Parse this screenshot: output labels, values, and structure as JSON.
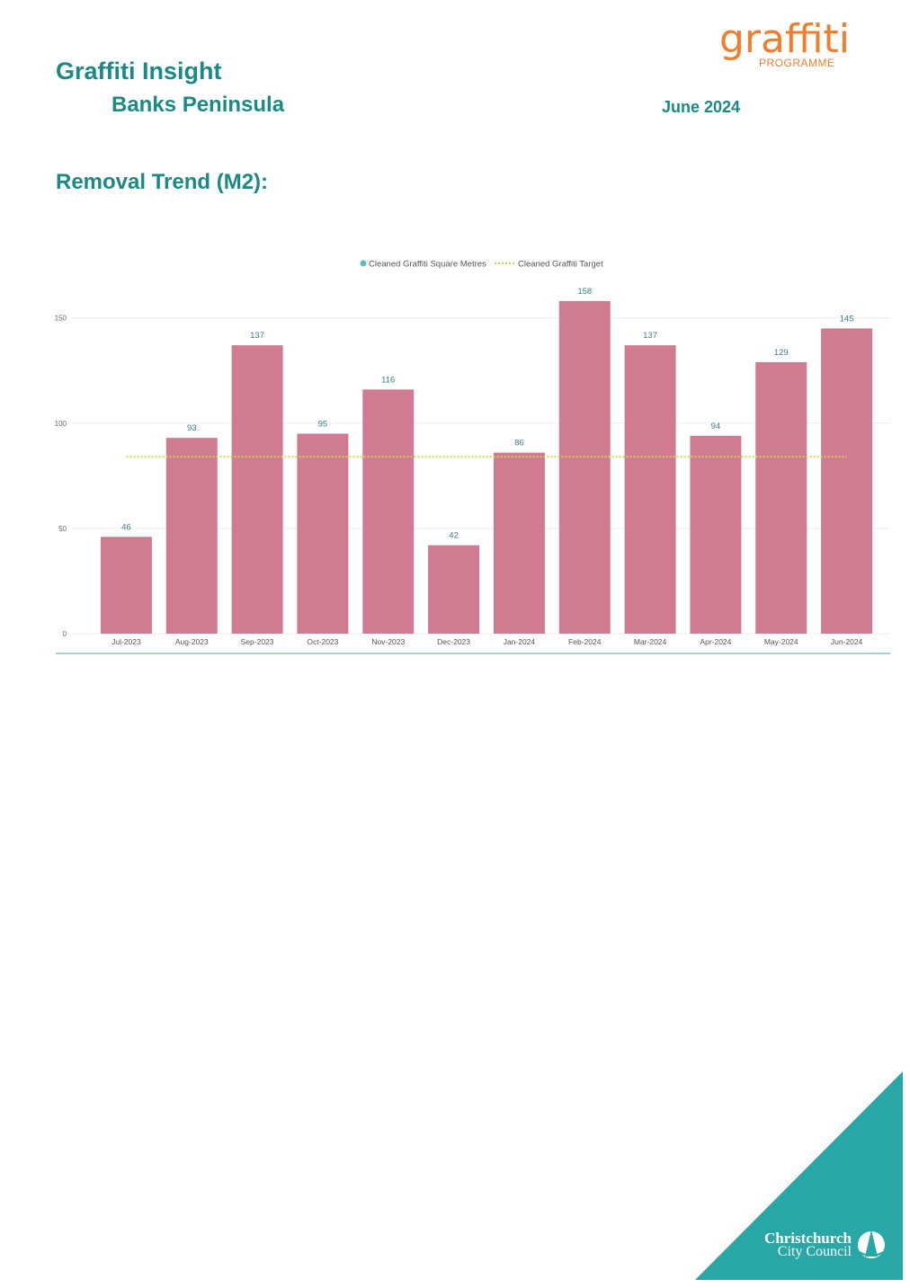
{
  "header": {
    "title": "Graffiti Insight",
    "area": "Banks Peninsula",
    "period": "June 2024"
  },
  "logo": {
    "word": "graffiti",
    "sub": "PROGRAMME",
    "color": "#ef7f2f"
  },
  "section": {
    "title": "Removal Trend (M2):"
  },
  "footer": {
    "council_line1": "Christchurch",
    "council_line2": "City Council",
    "corner_color": "#28a7a6"
  },
  "chart_data": {
    "type": "bar",
    "categories": [
      "Jul-2023",
      "Aug-2023",
      "Sep-2023",
      "Oct-2023",
      "Nov-2023",
      "Dec-2023",
      "Jan-2024",
      "Feb-2024",
      "Mar-2024",
      "Apr-2024",
      "May-2024",
      "Jun-2024"
    ],
    "series": [
      {
        "name": "Cleaned Graffiti Square Metres",
        "values": [
          46,
          93,
          137,
          95,
          116,
          42,
          86,
          158,
          137,
          94,
          129,
          145
        ],
        "color": "#d17b90",
        "legend_color": "#5bbcbf"
      }
    ],
    "target": {
      "name": "Cleaned Graffiti Target",
      "value": 84,
      "color": "#c8d84a",
      "style": "dotted"
    },
    "ylim": [
      0,
      160
    ],
    "yticks": [
      0,
      50,
      100,
      150
    ],
    "grid": true,
    "legend": "top-center",
    "data_labels": true
  }
}
